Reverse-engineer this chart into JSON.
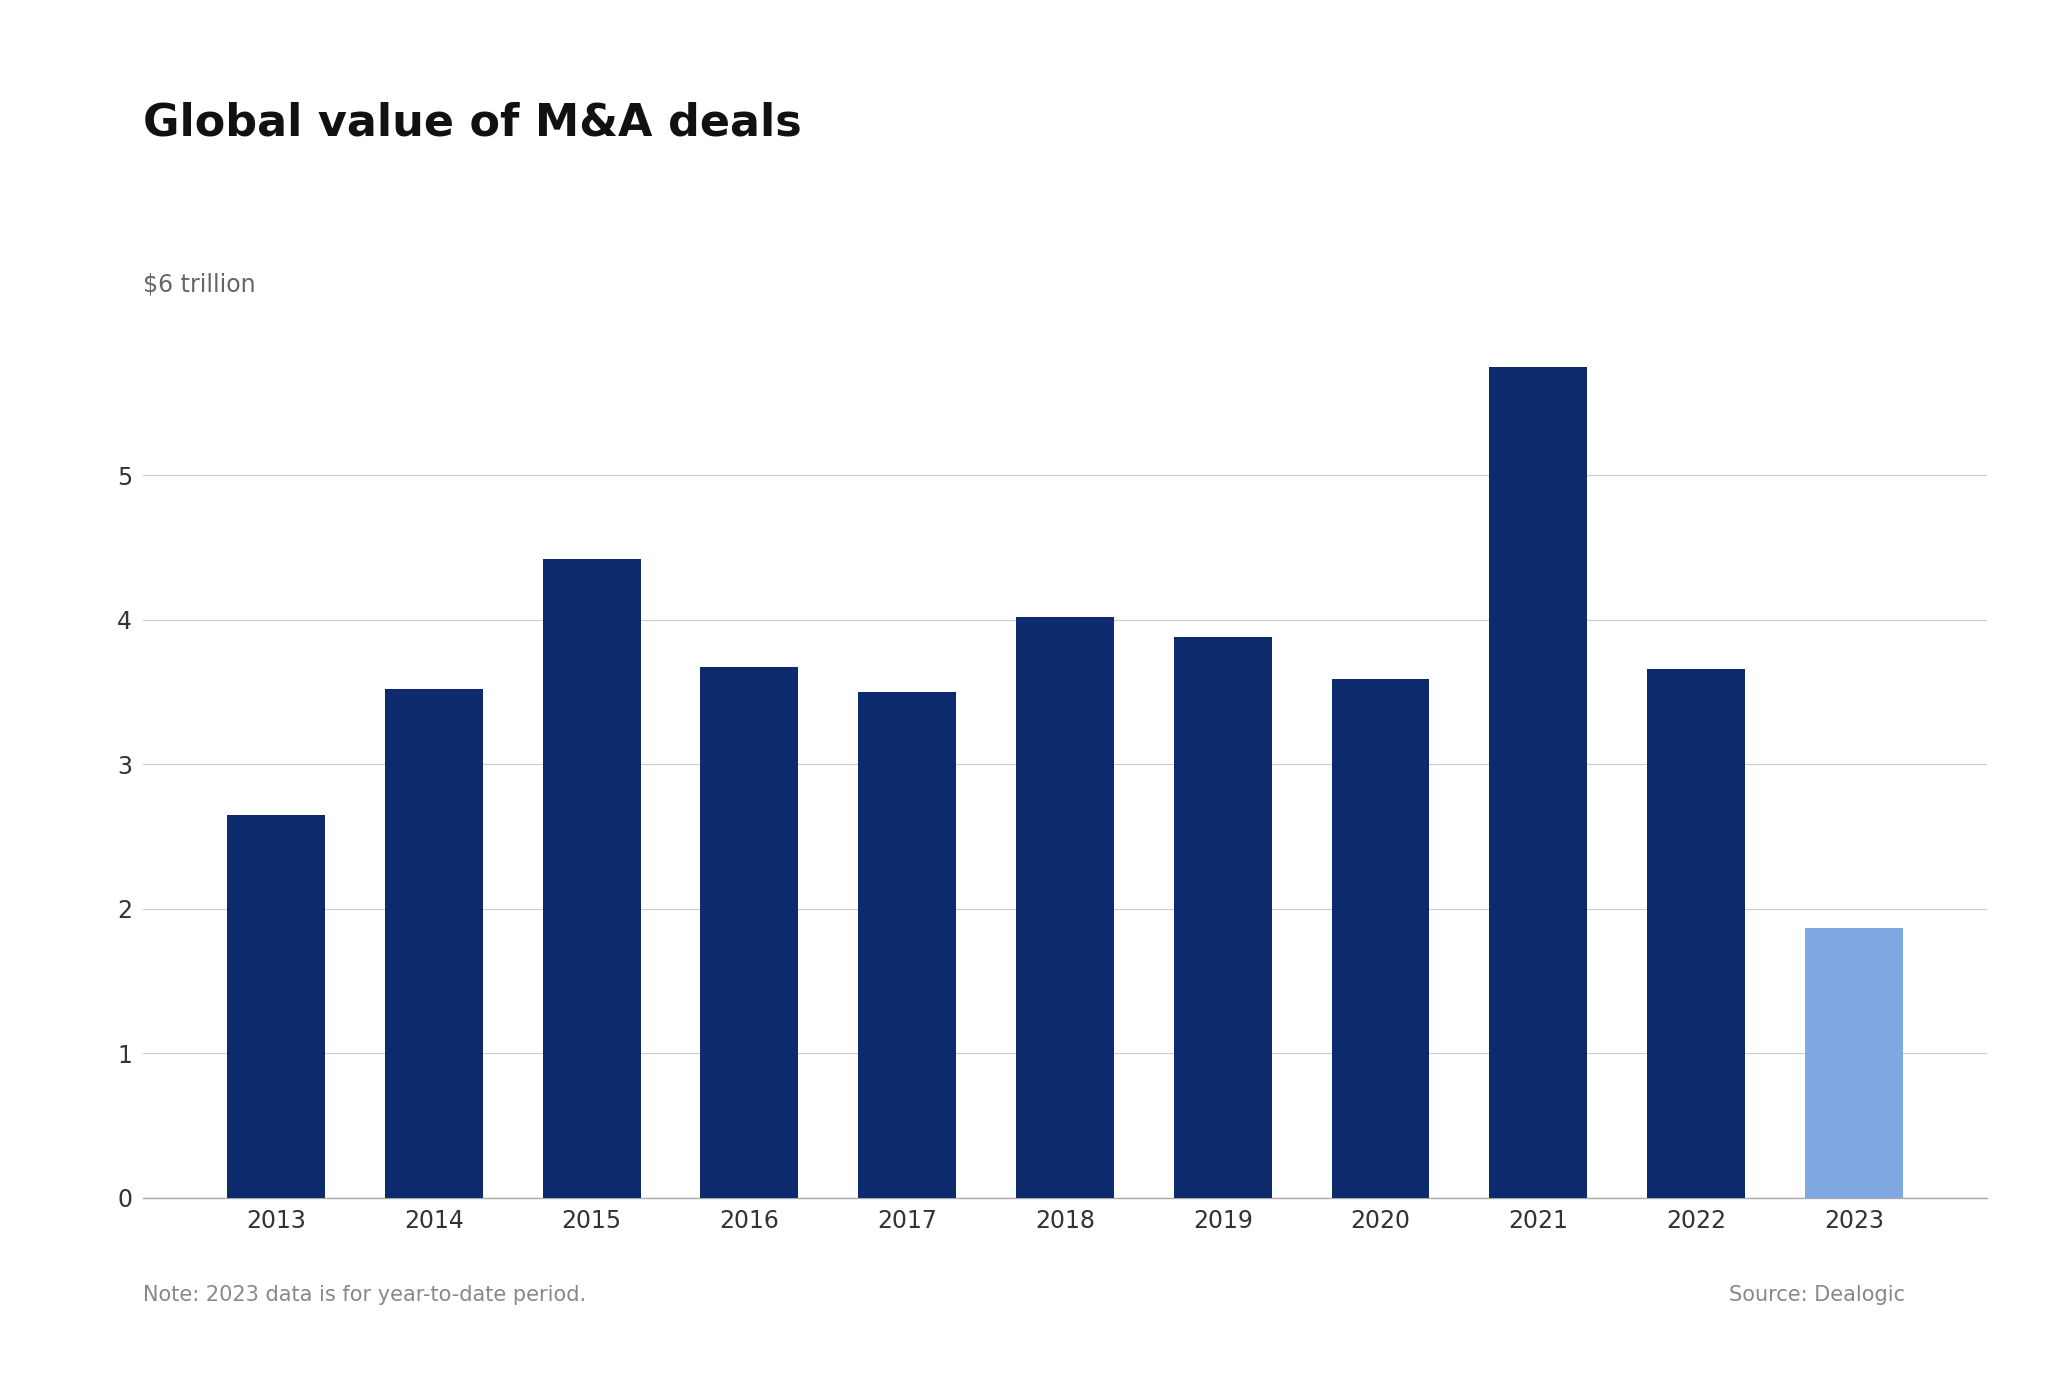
{
  "title": "Global value of M&A deals",
  "ylabel": "$6 trillion",
  "note": "Note: 2023 data is for year-to-date period.",
  "source": "Source: Dealogic",
  "categories": [
    "2013",
    "2014",
    "2015",
    "2016",
    "2017",
    "2018",
    "2019",
    "2020",
    "2021",
    "2022",
    "2023"
  ],
  "values": [
    2.65,
    3.52,
    4.42,
    3.67,
    3.5,
    4.02,
    3.88,
    3.59,
    5.75,
    3.66,
    1.87
  ],
  "bar_colors": [
    "#0d2a6e",
    "#0d2a6e",
    "#0d2a6e",
    "#0d2a6e",
    "#0d2a6e",
    "#0d2a6e",
    "#0d2a6e",
    "#0d2a6e",
    "#0d2a6e",
    "#0d2a6e",
    "#7fa8e0"
  ],
  "ylim": [
    0,
    6
  ],
  "yticks": [
    0,
    1,
    2,
    3,
    4,
    5
  ],
  "background_color": "#ffffff",
  "title_fontsize": 32,
  "label_fontsize": 17,
  "tick_fontsize": 17,
  "note_fontsize": 15,
  "grid_color": "#cccccc",
  "axis_color": "#aaaaaa"
}
